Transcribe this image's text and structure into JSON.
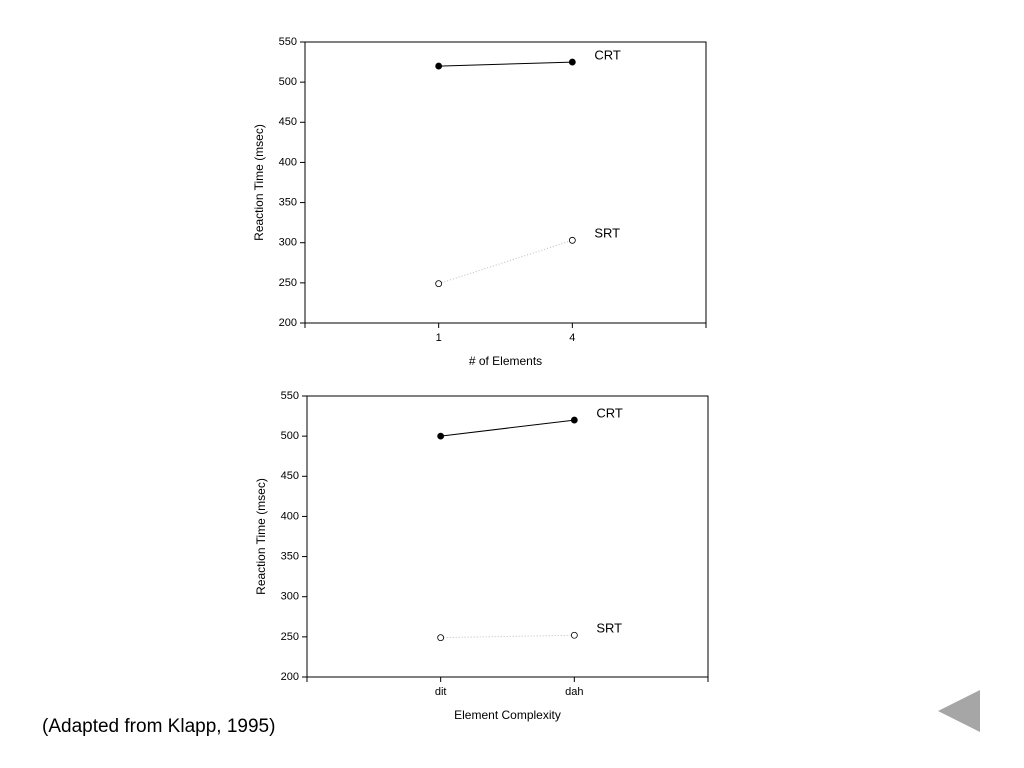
{
  "chart_data": [
    {
      "type": "line",
      "xlabel": "# of Elements",
      "ylabel": "Reaction Time (msec)",
      "categories": [
        "1",
        "4"
      ],
      "series": [
        {
          "name": "CRT",
          "color": "#000000",
          "marker": "filled",
          "line_style": "solid",
          "values": [
            520,
            525
          ]
        },
        {
          "name": "SRT",
          "color": "#000000",
          "marker": "open",
          "line_style": "dotted",
          "values": [
            249,
            303
          ]
        }
      ],
      "ylim": [
        200,
        550
      ],
      "yticks": [
        200,
        250,
        300,
        350,
        400,
        450,
        500,
        550
      ],
      "grid": false
    },
    {
      "type": "line",
      "xlabel": "Element Complexity",
      "ylabel": "Reaction Time (msec)",
      "categories": [
        "dit",
        "dah"
      ],
      "series": [
        {
          "name": "CRT",
          "color": "#000000",
          "marker": "filled",
          "line_style": "solid",
          "values": [
            500,
            520
          ]
        },
        {
          "name": "SRT",
          "color": "#000000",
          "marker": "open",
          "line_style": "dotted",
          "values": [
            249,
            252
          ]
        }
      ],
      "ylim": [
        200,
        550
      ],
      "yticks": [
        200,
        250,
        300,
        350,
        400,
        450,
        500,
        550
      ],
      "grid": false
    }
  ],
  "caption": "(Adapted from Klapp, 1995)"
}
